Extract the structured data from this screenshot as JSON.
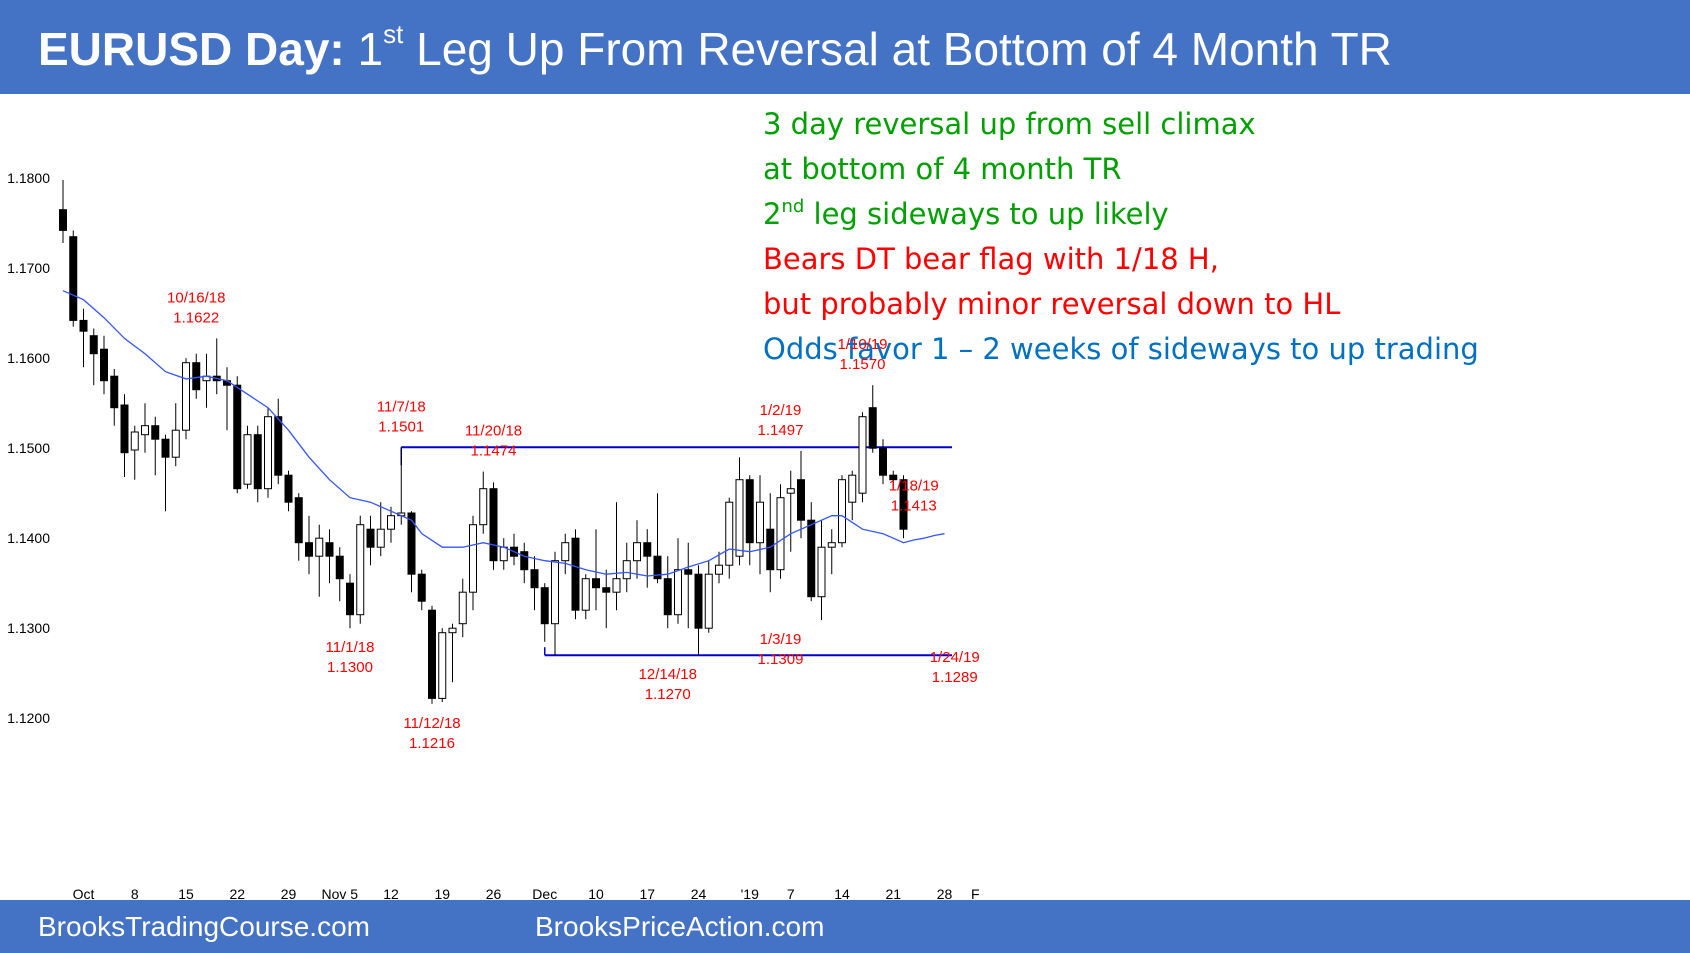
{
  "header": {
    "title_bold": "EURUSD Day:",
    "title_pre": "1",
    "title_sup": "st",
    "title_rest": "Leg Up From Reversal at Bottom of 4 Month TR"
  },
  "notes": {
    "line1": "3 day reversal up from sell climax",
    "line2": "at bottom of 4 month TR",
    "line3_pre": "2",
    "line3_sup": "nd",
    "line3_rest": " leg sideways to up likely",
    "line4": "Bears DT bear flag with 1/18 H,",
    "line5": "but probably minor reversal down to HL",
    "line6": "Odds favor 1 – 2 weeks of sideways to up trading"
  },
  "footer": {
    "left": "BrooksTradingCourse.com",
    "right": "BrooksPriceAction.com"
  },
  "colors": {
    "banner": "#4472c4",
    "bull_note": "#00a000",
    "bear_note": "#ff0000",
    "neutral_note": "#0070c0",
    "annotation": "#ff0000",
    "range_line": "#0000cc",
    "ema_line": "#3355ff"
  },
  "chart_data": {
    "type": "candlestick",
    "title": "",
    "xlabel": "",
    "ylabel": "",
    "ylim": [
      1.1175,
      1.1845
    ],
    "y_ticks": [
      "1.1200",
      "1.1300",
      "1.1400",
      "1.1500",
      "1.1600",
      "1.1700",
      "1.1800"
    ],
    "x_ticks": [
      {
        "label": "Oct",
        "i": 2
      },
      {
        "label": "8",
        "i": 7
      },
      {
        "label": "15",
        "i": 12
      },
      {
        "label": "22",
        "i": 17
      },
      {
        "label": "29",
        "i": 22
      },
      {
        "label": "Nov 5",
        "i": 27
      },
      {
        "label": "12",
        "i": 32
      },
      {
        "label": "19",
        "i": 37
      },
      {
        "label": "26",
        "i": 42
      },
      {
        "label": "Dec",
        "i": 47
      },
      {
        "label": "10",
        "i": 52
      },
      {
        "label": "17",
        "i": 57
      },
      {
        "label": "24",
        "i": 62
      },
      {
        "label": "'19",
        "i": 67
      },
      {
        "label": "7",
        "i": 71
      },
      {
        "label": "14",
        "i": 76
      },
      {
        "label": "21",
        "i": 81
      },
      {
        "label": "28",
        "i": 86
      },
      {
        "label": "F",
        "i": 89
      }
    ],
    "candles": [
      {
        "o": 1.1765,
        "h": 1.1798,
        "l": 1.1728,
        "c": 1.1742
      },
      {
        "o": 1.1735,
        "h": 1.1742,
        "l": 1.1635,
        "c": 1.1642
      },
      {
        "o": 1.1642,
        "h": 1.1655,
        "l": 1.159,
        "c": 1.163
      },
      {
        "o": 1.1625,
        "h": 1.1633,
        "l": 1.157,
        "c": 1.1605
      },
      {
        "o": 1.161,
        "h": 1.1625,
        "l": 1.156,
        "c": 1.1575
      },
      {
        "o": 1.158,
        "h": 1.1588,
        "l": 1.1525,
        "c": 1.1545
      },
      {
        "o": 1.1548,
        "h": 1.156,
        "l": 1.1468,
        "c": 1.1495
      },
      {
        "o": 1.1498,
        "h": 1.1525,
        "l": 1.1465,
        "c": 1.1518
      },
      {
        "o": 1.1515,
        "h": 1.155,
        "l": 1.1495,
        "c": 1.1525
      },
      {
        "o": 1.1525,
        "h": 1.1535,
        "l": 1.147,
        "c": 1.151
      },
      {
        "o": 1.151,
        "h": 1.1515,
        "l": 1.143,
        "c": 1.149
      },
      {
        "o": 1.149,
        "h": 1.155,
        "l": 1.148,
        "c": 1.152
      },
      {
        "o": 1.152,
        "h": 1.16,
        "l": 1.151,
        "c": 1.1595
      },
      {
        "o": 1.1595,
        "h": 1.1605,
        "l": 1.1555,
        "c": 1.1565
      },
      {
        "o": 1.1575,
        "h": 1.1605,
        "l": 1.1545,
        "c": 1.158
      },
      {
        "o": 1.158,
        "h": 1.1622,
        "l": 1.156,
        "c": 1.1575
      },
      {
        "o": 1.1575,
        "h": 1.159,
        "l": 1.152,
        "c": 1.157
      },
      {
        "o": 1.157,
        "h": 1.158,
        "l": 1.145,
        "c": 1.1455
      },
      {
        "o": 1.146,
        "h": 1.1525,
        "l": 1.1455,
        "c": 1.1515
      },
      {
        "o": 1.1515,
        "h": 1.1525,
        "l": 1.144,
        "c": 1.1455
      },
      {
        "o": 1.1455,
        "h": 1.1545,
        "l": 1.1445,
        "c": 1.1535
      },
      {
        "o": 1.1535,
        "h": 1.1555,
        "l": 1.146,
        "c": 1.147
      },
      {
        "o": 1.147,
        "h": 1.1475,
        "l": 1.143,
        "c": 1.144
      },
      {
        "o": 1.1445,
        "h": 1.145,
        "l": 1.1375,
        "c": 1.1395
      },
      {
        "o": 1.1395,
        "h": 1.1425,
        "l": 1.136,
        "c": 1.138
      },
      {
        "o": 1.138,
        "h": 1.1415,
        "l": 1.1335,
        "c": 1.14
      },
      {
        "o": 1.1395,
        "h": 1.141,
        "l": 1.135,
        "c": 1.138
      },
      {
        "o": 1.138,
        "h": 1.139,
        "l": 1.133,
        "c": 1.1355
      },
      {
        "o": 1.135,
        "h": 1.136,
        "l": 1.13,
        "c": 1.1315
      },
      {
        "o": 1.1315,
        "h": 1.1425,
        "l": 1.1305,
        "c": 1.1415
      },
      {
        "o": 1.141,
        "h": 1.1425,
        "l": 1.137,
        "c": 1.139
      },
      {
        "o": 1.139,
        "h": 1.144,
        "l": 1.138,
        "c": 1.141
      },
      {
        "o": 1.141,
        "h": 1.1435,
        "l": 1.1395,
        "c": 1.1425
      },
      {
        "o": 1.1425,
        "h": 1.1501,
        "l": 1.1415,
        "c": 1.1428
      },
      {
        "o": 1.1428,
        "h": 1.143,
        "l": 1.134,
        "c": 1.136
      },
      {
        "o": 1.136,
        "h": 1.1365,
        "l": 1.132,
        "c": 1.133
      },
      {
        "o": 1.132,
        "h": 1.1325,
        "l": 1.1216,
        "c": 1.1222
      },
      {
        "o": 1.1222,
        "h": 1.13,
        "l": 1.1218,
        "c": 1.1295
      },
      {
        "o": 1.1295,
        "h": 1.1305,
        "l": 1.124,
        "c": 1.13
      },
      {
        "o": 1.1305,
        "h": 1.1355,
        "l": 1.129,
        "c": 1.134
      },
      {
        "o": 1.134,
        "h": 1.1425,
        "l": 1.132,
        "c": 1.1415
      },
      {
        "o": 1.1415,
        "h": 1.1474,
        "l": 1.1405,
        "c": 1.1455
      },
      {
        "o": 1.1455,
        "h": 1.1462,
        "l": 1.1365,
        "c": 1.1375
      },
      {
        "o": 1.1375,
        "h": 1.14,
        "l": 1.1365,
        "c": 1.139
      },
      {
        "o": 1.139,
        "h": 1.1405,
        "l": 1.137,
        "c": 1.138
      },
      {
        "o": 1.1385,
        "h": 1.1395,
        "l": 1.135,
        "c": 1.1365
      },
      {
        "o": 1.1365,
        "h": 1.138,
        "l": 1.132,
        "c": 1.1345
      },
      {
        "o": 1.1345,
        "h": 1.135,
        "l": 1.1285,
        "c": 1.1305
      },
      {
        "o": 1.1305,
        "h": 1.1385,
        "l": 1.127,
        "c": 1.1375
      },
      {
        "o": 1.1375,
        "h": 1.1405,
        "l": 1.136,
        "c": 1.1395
      },
      {
        "o": 1.14,
        "h": 1.141,
        "l": 1.131,
        "c": 1.132
      },
      {
        "o": 1.132,
        "h": 1.136,
        "l": 1.131,
        "c": 1.1355
      },
      {
        "o": 1.1355,
        "h": 1.141,
        "l": 1.132,
        "c": 1.1345
      },
      {
        "o": 1.1345,
        "h": 1.1365,
        "l": 1.13,
        "c": 1.134
      },
      {
        "o": 1.134,
        "h": 1.144,
        "l": 1.132,
        "c": 1.1355
      },
      {
        "o": 1.1355,
        "h": 1.1395,
        "l": 1.134,
        "c": 1.1375
      },
      {
        "o": 1.1375,
        "h": 1.142,
        "l": 1.1355,
        "c": 1.1395
      },
      {
        "o": 1.1395,
        "h": 1.141,
        "l": 1.1345,
        "c": 1.138
      },
      {
        "o": 1.138,
        "h": 1.145,
        "l": 1.135,
        "c": 1.1355
      },
      {
        "o": 1.1355,
        "h": 1.138,
        "l": 1.13,
        "c": 1.1315
      },
      {
        "o": 1.1315,
        "h": 1.14,
        "l": 1.1305,
        "c": 1.1365
      },
      {
        "o": 1.1365,
        "h": 1.1395,
        "l": 1.13,
        "c": 1.136
      },
      {
        "o": 1.136,
        "h": 1.137,
        "l": 1.127,
        "c": 1.13
      },
      {
        "o": 1.13,
        "h": 1.1375,
        "l": 1.1295,
        "c": 1.136
      },
      {
        "o": 1.136,
        "h": 1.1385,
        "l": 1.135,
        "c": 1.137
      },
      {
        "o": 1.137,
        "h": 1.1445,
        "l": 1.1355,
        "c": 1.144
      },
      {
        "o": 1.138,
        "h": 1.149,
        "l": 1.137,
        "c": 1.1465
      },
      {
        "o": 1.1465,
        "h": 1.147,
        "l": 1.137,
        "c": 1.1395
      },
      {
        "o": 1.1395,
        "h": 1.147,
        "l": 1.136,
        "c": 1.144
      },
      {
        "o": 1.141,
        "h": 1.145,
        "l": 1.134,
        "c": 1.1365
      },
      {
        "o": 1.1365,
        "h": 1.146,
        "l": 1.1355,
        "c": 1.1445
      },
      {
        "o": 1.145,
        "h": 1.1475,
        "l": 1.1385,
        "c": 1.1455
      },
      {
        "o": 1.1465,
        "h": 1.1497,
        "l": 1.14,
        "c": 1.142
      },
      {
        "o": 1.142,
        "h": 1.144,
        "l": 1.133,
        "c": 1.1335
      },
      {
        "o": 1.1335,
        "h": 1.142,
        "l": 1.1309,
        "c": 1.139
      },
      {
        "o": 1.139,
        "h": 1.141,
        "l": 1.136,
        "c": 1.1395
      },
      {
        "o": 1.1395,
        "h": 1.147,
        "l": 1.139,
        "c": 1.1465
      },
      {
        "o": 1.144,
        "h": 1.1475,
        "l": 1.142,
        "c": 1.147
      },
      {
        "o": 1.145,
        "h": 1.154,
        "l": 1.144,
        "c": 1.1535
      },
      {
        "o": 1.1545,
        "h": 1.157,
        "l": 1.1495,
        "c": 1.15
      },
      {
        "o": 1.15,
        "h": 1.151,
        "l": 1.146,
        "c": 1.147
      },
      {
        "o": 1.147,
        "h": 1.1475,
        "l": 1.1455,
        "c": 1.1465
      },
      {
        "o": 1.1465,
        "h": 1.147,
        "l": 1.14,
        "c": 1.141
      }
    ],
    "ema": {
      "name": "",
      "points": [
        [
          0,
          1.1675
        ],
        [
          2,
          1.1665
        ],
        [
          4,
          1.1645
        ],
        [
          6,
          1.1622
        ],
        [
          8,
          1.1605
        ],
        [
          10,
          1.1585
        ],
        [
          12,
          1.1577
        ],
        [
          14,
          1.158
        ],
        [
          16,
          1.1575
        ],
        [
          18,
          1.156
        ],
        [
          20,
          1.1545
        ],
        [
          22,
          1.152
        ],
        [
          24,
          1.149
        ],
        [
          26,
          1.1465
        ],
        [
          28,
          1.1445
        ],
        [
          30,
          1.144
        ],
        [
          32,
          1.143
        ],
        [
          34,
          1.142
        ],
        [
          35,
          1.1405
        ],
        [
          37,
          1.139
        ],
        [
          39,
          1.139
        ],
        [
          41,
          1.1395
        ],
        [
          43,
          1.139
        ],
        [
          45,
          1.138
        ],
        [
          47,
          1.1375
        ],
        [
          49,
          1.1372
        ],
        [
          51,
          1.1365
        ],
        [
          53,
          1.136
        ],
        [
          55,
          1.1362
        ],
        [
          57,
          1.1358
        ],
        [
          59,
          1.136
        ],
        [
          61,
          1.1368
        ],
        [
          63,
          1.1375
        ],
        [
          65,
          1.1388
        ],
        [
          67,
          1.1385
        ],
        [
          69,
          1.139
        ],
        [
          71,
          1.1405
        ],
        [
          73,
          1.1415
        ],
        [
          75,
          1.1425
        ],
        [
          76,
          1.1425
        ],
        [
          78,
          1.141
        ],
        [
          80,
          1.1405
        ],
        [
          81,
          1.14
        ],
        [
          82,
          1.1395
        ],
        [
          83,
          1.1398
        ],
        [
          84,
          1.14
        ],
        [
          85,
          1.1403
        ],
        [
          86,
          1.1405
        ]
      ]
    },
    "ranges": [
      {
        "from": 33,
        "to": 96,
        "y": 1.1501
      },
      {
        "from": 47,
        "to": 96,
        "y": 1.127
      }
    ],
    "annotations": [
      {
        "i": 13,
        "y": 1.1622,
        "date": "10/16/18",
        "value": "1.1622",
        "pos": "above"
      },
      {
        "i": 33,
        "y": 1.1501,
        "date": "11/7/18",
        "value": "1.1501",
        "pos": "above"
      },
      {
        "i": 42,
        "y": 1.1474,
        "date": "11/20/18",
        "value": "1.1474",
        "pos": "above"
      },
      {
        "i": 28,
        "y": 1.13,
        "date": "11/1/18",
        "value": "1.1300",
        "pos": "below"
      },
      {
        "i": 36,
        "y": 1.1216,
        "date": "11/12/18",
        "value": "1.1216",
        "pos": "below"
      },
      {
        "i": 59,
        "y": 1.127,
        "date": "12/14/18",
        "value": "1.1270",
        "pos": "below"
      },
      {
        "i": 70,
        "y": 1.1497,
        "date": "1/2/19",
        "value": "1.1497",
        "pos": "above"
      },
      {
        "i": 70,
        "y": 1.1309,
        "date": "1/3/19",
        "value": "1.1309",
        "pos": "below"
      },
      {
        "i": 78,
        "y": 1.157,
        "date": "1/10/19",
        "value": "1.1570",
        "pos": "above"
      },
      {
        "i": 83,
        "y": 1.1413,
        "date": "1/18/19",
        "value": "1.1413",
        "pos": "above"
      },
      {
        "i": 87,
        "y": 1.1289,
        "date": "1/24/19",
        "value": "1.1289",
        "pos": "below"
      }
    ]
  }
}
